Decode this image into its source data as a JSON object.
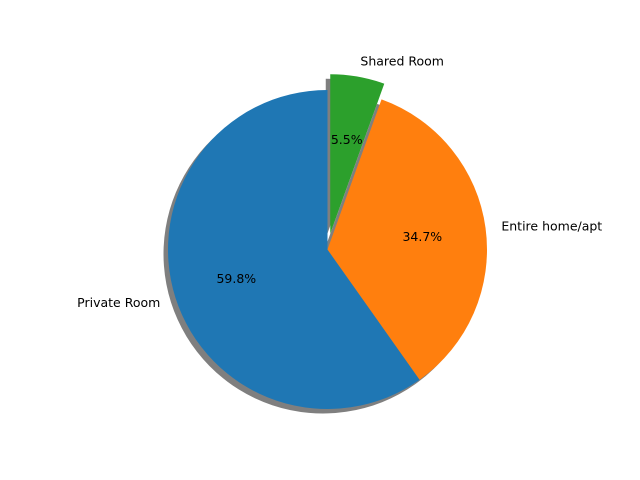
{
  "chart_data": {
    "type": "pie",
    "title": "",
    "labels": [
      "Private Room",
      "Entire home/apt",
      "Shared Room"
    ],
    "values": [
      59.8,
      34.7,
      5.5
    ],
    "percent_labels": [
      "59.8%",
      "34.7%",
      "5.5%"
    ],
    "colors": [
      "#1f77b4",
      "#ff7f0e",
      "#2ca02c"
    ],
    "explode": [
      0,
      0,
      0.1
    ],
    "start_angle_deg": 90,
    "direction": "counterclockwise",
    "shadow": true,
    "legend": "none"
  }
}
